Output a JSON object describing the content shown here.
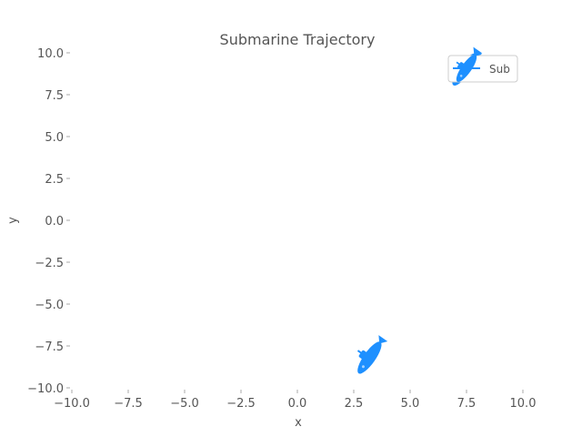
{
  "chart_data": {
    "type": "scatter",
    "title": "Submarine Trajectory",
    "xlabel": "x",
    "ylabel": "y",
    "xlim": [
      -10.0,
      10.0
    ],
    "ylim": [
      -10.0,
      10.0
    ],
    "x_ticks": [
      -10.0,
      -7.5,
      -5.0,
      -2.5,
      0.0,
      2.5,
      5.0,
      7.5,
      10.0
    ],
    "y_ticks": [
      -10.0,
      -7.5,
      -5.0,
      -2.5,
      0.0,
      2.5,
      5.0,
      7.5,
      10.0
    ],
    "x_tick_labels": [
      "−10.0",
      "−7.5",
      "−5.0",
      "−2.5",
      "0.0",
      "2.5",
      "5.0",
      "7.5",
      "10.0"
    ],
    "y_tick_labels": [
      "−10.0",
      "−7.5",
      "−5.0",
      "−2.5",
      "0.0",
      "2.5",
      "5.0",
      "7.5",
      "10.0"
    ],
    "grid": false,
    "legend_position": "top-right",
    "series": [
      {
        "name": "Sub",
        "color": "#1e90ff",
        "marker": "submarine-icon",
        "points": [
          {
            "x": 3.2,
            "y": -8.2,
            "angle_deg": -55
          },
          {
            "x": 7.4,
            "y": 9.0,
            "angle_deg": -55
          }
        ]
      }
    ]
  }
}
